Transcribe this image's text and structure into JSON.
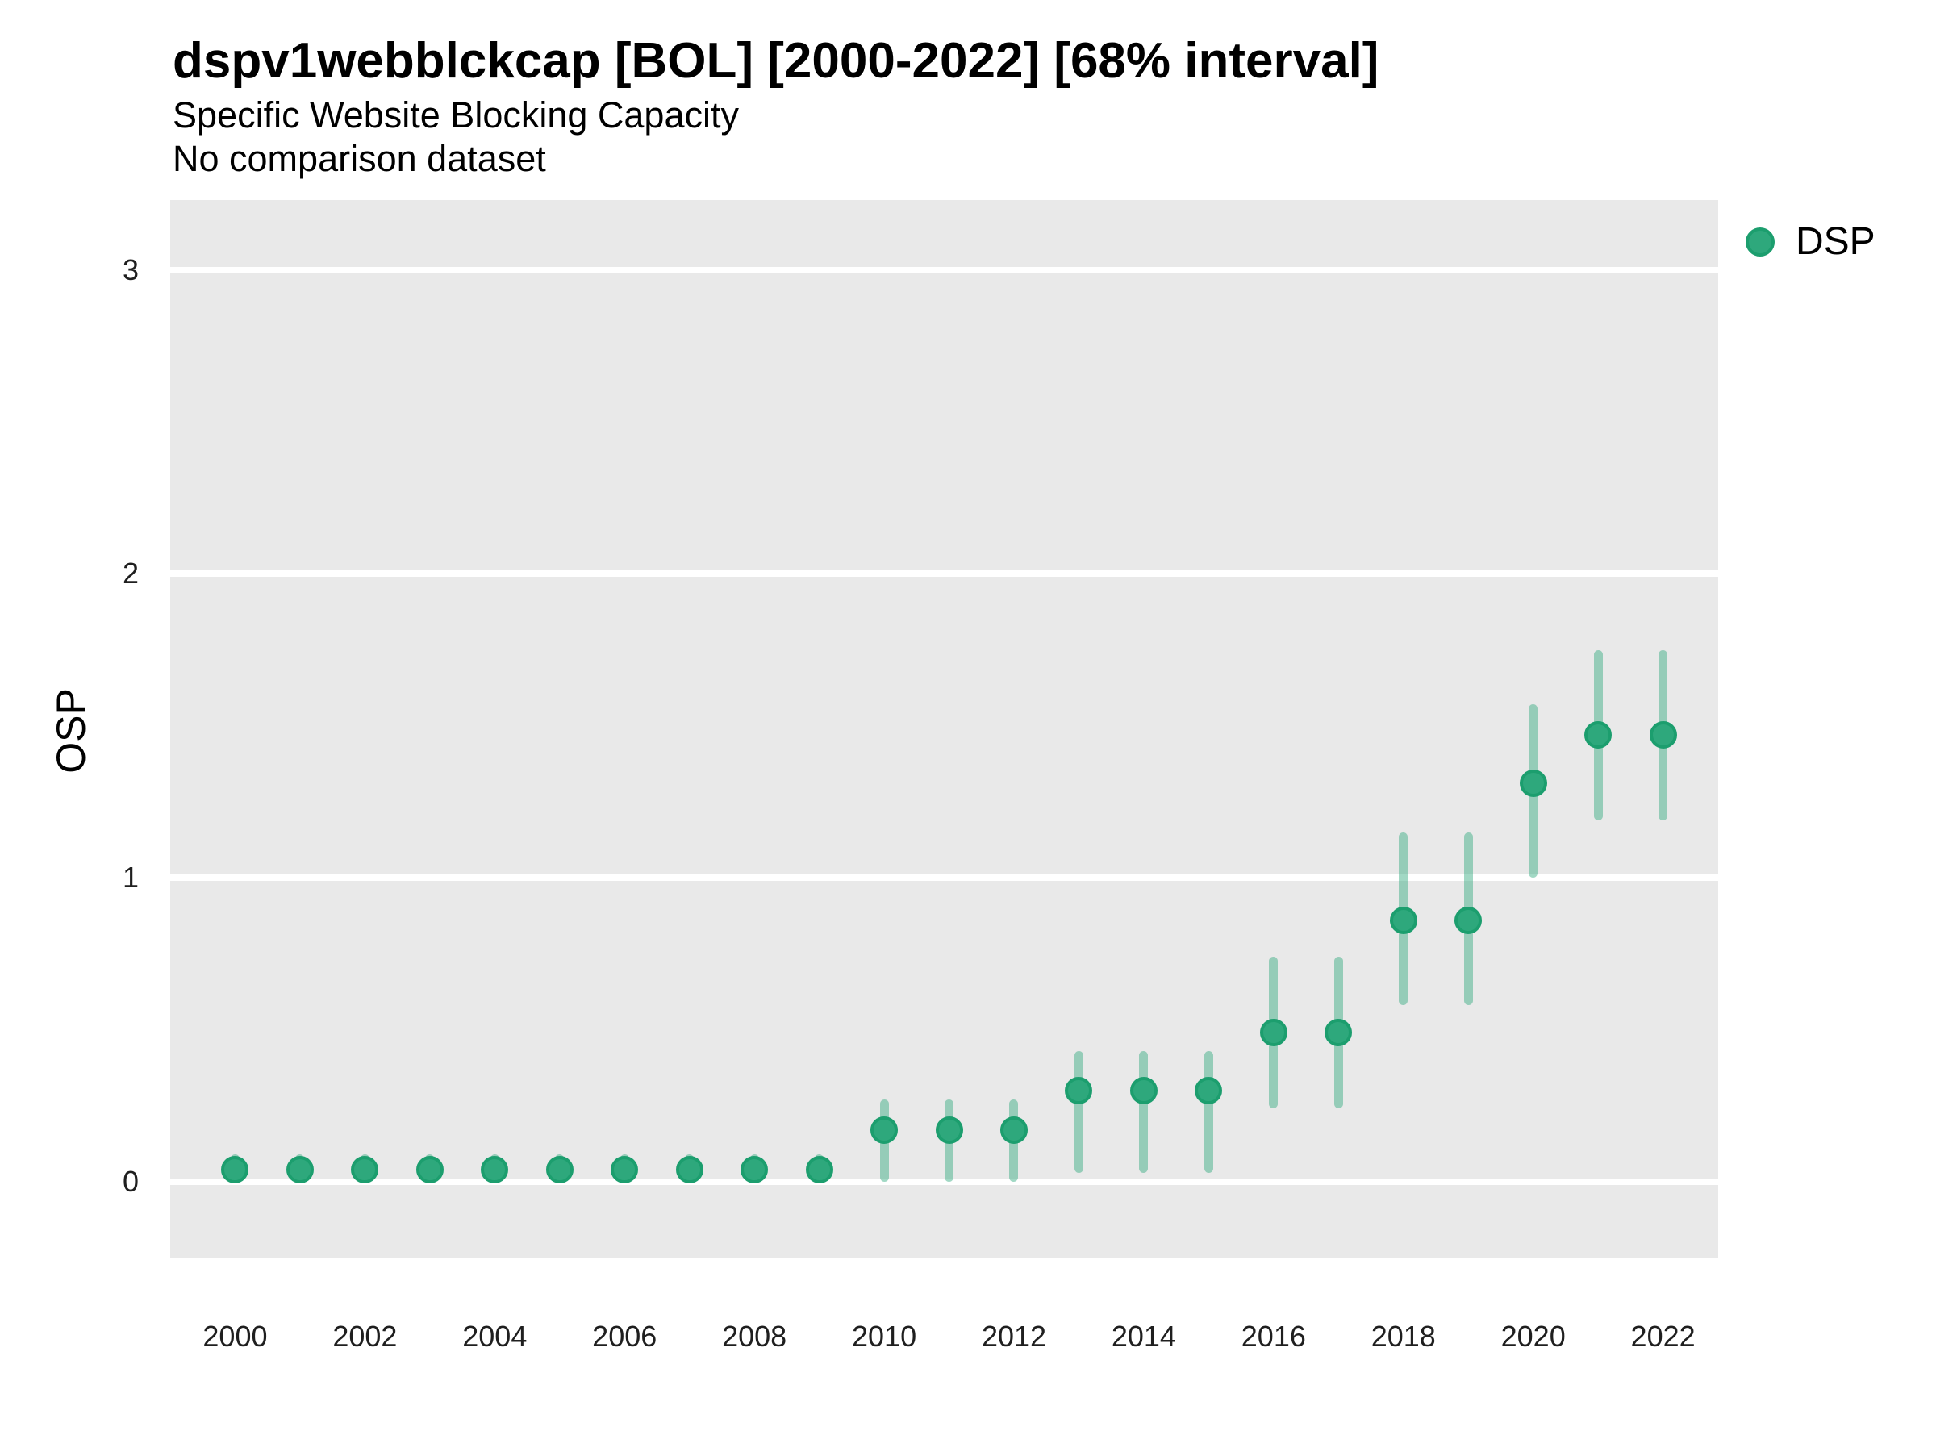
{
  "header": {
    "title": "dspv1webblckcap [BOL] [2000-2022] [68% interval]",
    "subtitle": "Specific Website Blocking Capacity",
    "note": "No comparison dataset"
  },
  "axes": {
    "y_label": "OSP"
  },
  "legend": {
    "items": [
      {
        "label": "DSP",
        "marker": "circle-icon"
      }
    ]
  },
  "colors": {
    "point_fill": "#2EA87C",
    "point_stroke": "#1C9E6E",
    "interval": "rgba(46,168,124,0.45)",
    "panel_bg": "#E9E9E9",
    "gridline": "#FFFFFF",
    "text": "#000000"
  },
  "chart_data": {
    "type": "scatter",
    "title": "dspv1webblckcap [BOL] [2000-2022] [68% interval]",
    "subtitle": "Specific Website Blocking Capacity",
    "note": "No comparison dataset",
    "xlabel": "",
    "ylabel": "OSP",
    "legend_position": "right",
    "grid": "horizontal-major-only",
    "interval_level": "68%",
    "xlim": [
      1999.0,
      2022.85
    ],
    "ylim": [
      -0.25,
      3.23
    ],
    "x_ticks": [
      2000,
      2002,
      2004,
      2006,
      2008,
      2010,
      2012,
      2014,
      2016,
      2018,
      2020,
      2022
    ],
    "y_ticks": [
      0,
      1,
      2,
      3
    ],
    "series": [
      {
        "name": "DSP",
        "x": [
          2000,
          2001,
          2002,
          2003,
          2004,
          2005,
          2006,
          2007,
          2008,
          2009,
          2010,
          2011,
          2012,
          2013,
          2014,
          2015,
          2016,
          2017,
          2018,
          2019,
          2020,
          2021,
          2022
        ],
        "y": [
          0.04,
          0.04,
          0.04,
          0.04,
          0.04,
          0.04,
          0.04,
          0.04,
          0.04,
          0.04,
          0.17,
          0.17,
          0.17,
          0.3,
          0.3,
          0.3,
          0.49,
          0.49,
          0.86,
          0.86,
          1.31,
          1.47,
          1.47
        ],
        "y_lo": [
          0.0,
          0.0,
          0.0,
          0.0,
          0.0,
          0.0,
          0.0,
          0.0,
          0.0,
          0.0,
          0.0,
          0.0,
          0.0,
          0.03,
          0.03,
          0.03,
          0.24,
          0.24,
          0.58,
          0.58,
          1.0,
          1.19,
          1.19
        ],
        "y_hi": [
          0.09,
          0.09,
          0.09,
          0.09,
          0.09,
          0.09,
          0.09,
          0.09,
          0.09,
          0.09,
          0.27,
          0.27,
          0.27,
          0.43,
          0.43,
          0.43,
          0.74,
          0.74,
          1.15,
          1.15,
          1.57,
          1.75,
          1.75
        ]
      }
    ]
  }
}
